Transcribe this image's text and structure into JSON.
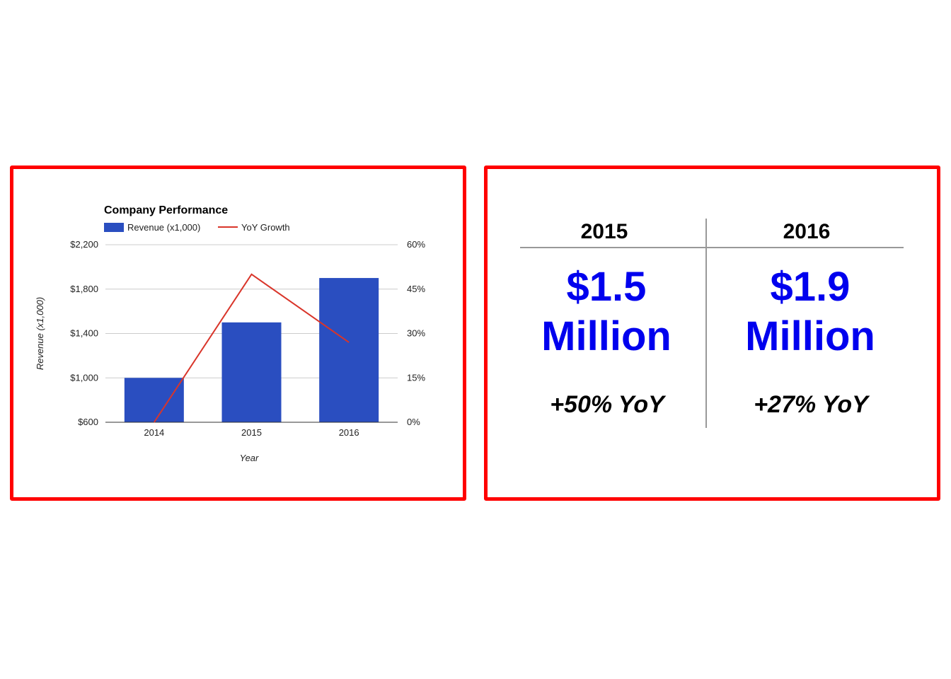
{
  "chart_data": {
    "type": "bar",
    "title": "Company Performance",
    "categories": [
      "2014",
      "2015",
      "2016"
    ],
    "series": [
      {
        "name": "Revenue (x1,000)",
        "type": "bar",
        "axis": "left",
        "values": [
          1000,
          1500,
          1900
        ],
        "color": "#2a4ec0"
      },
      {
        "name": "YoY Growth",
        "type": "line",
        "axis": "right",
        "values": [
          0,
          50,
          27
        ],
        "color": "#d9352a"
      }
    ],
    "xlabel": "Year",
    "ylabel": "Revenue (x1,000)",
    "ylim": [
      600,
      2200
    ],
    "yticks": [
      "$600",
      "$1,000",
      "$1,400",
      "$1,800",
      "$2,200"
    ],
    "y2lim": [
      0,
      60
    ],
    "y2ticks": [
      "0%",
      "15%",
      "30%",
      "45%",
      "60%"
    ],
    "grid": true,
    "legend_position": "top-left"
  },
  "summary": {
    "columns": [
      {
        "year": "2015",
        "value_line1": "$1.5",
        "value_line2": "Million",
        "yoy": "+50% YoY"
      },
      {
        "year": "2016",
        "value_line1": "$1.9",
        "value_line2": "Million",
        "yoy": "+27% YoY"
      }
    ],
    "value_color": "#0000ee",
    "frame_color": "#ff0000"
  }
}
